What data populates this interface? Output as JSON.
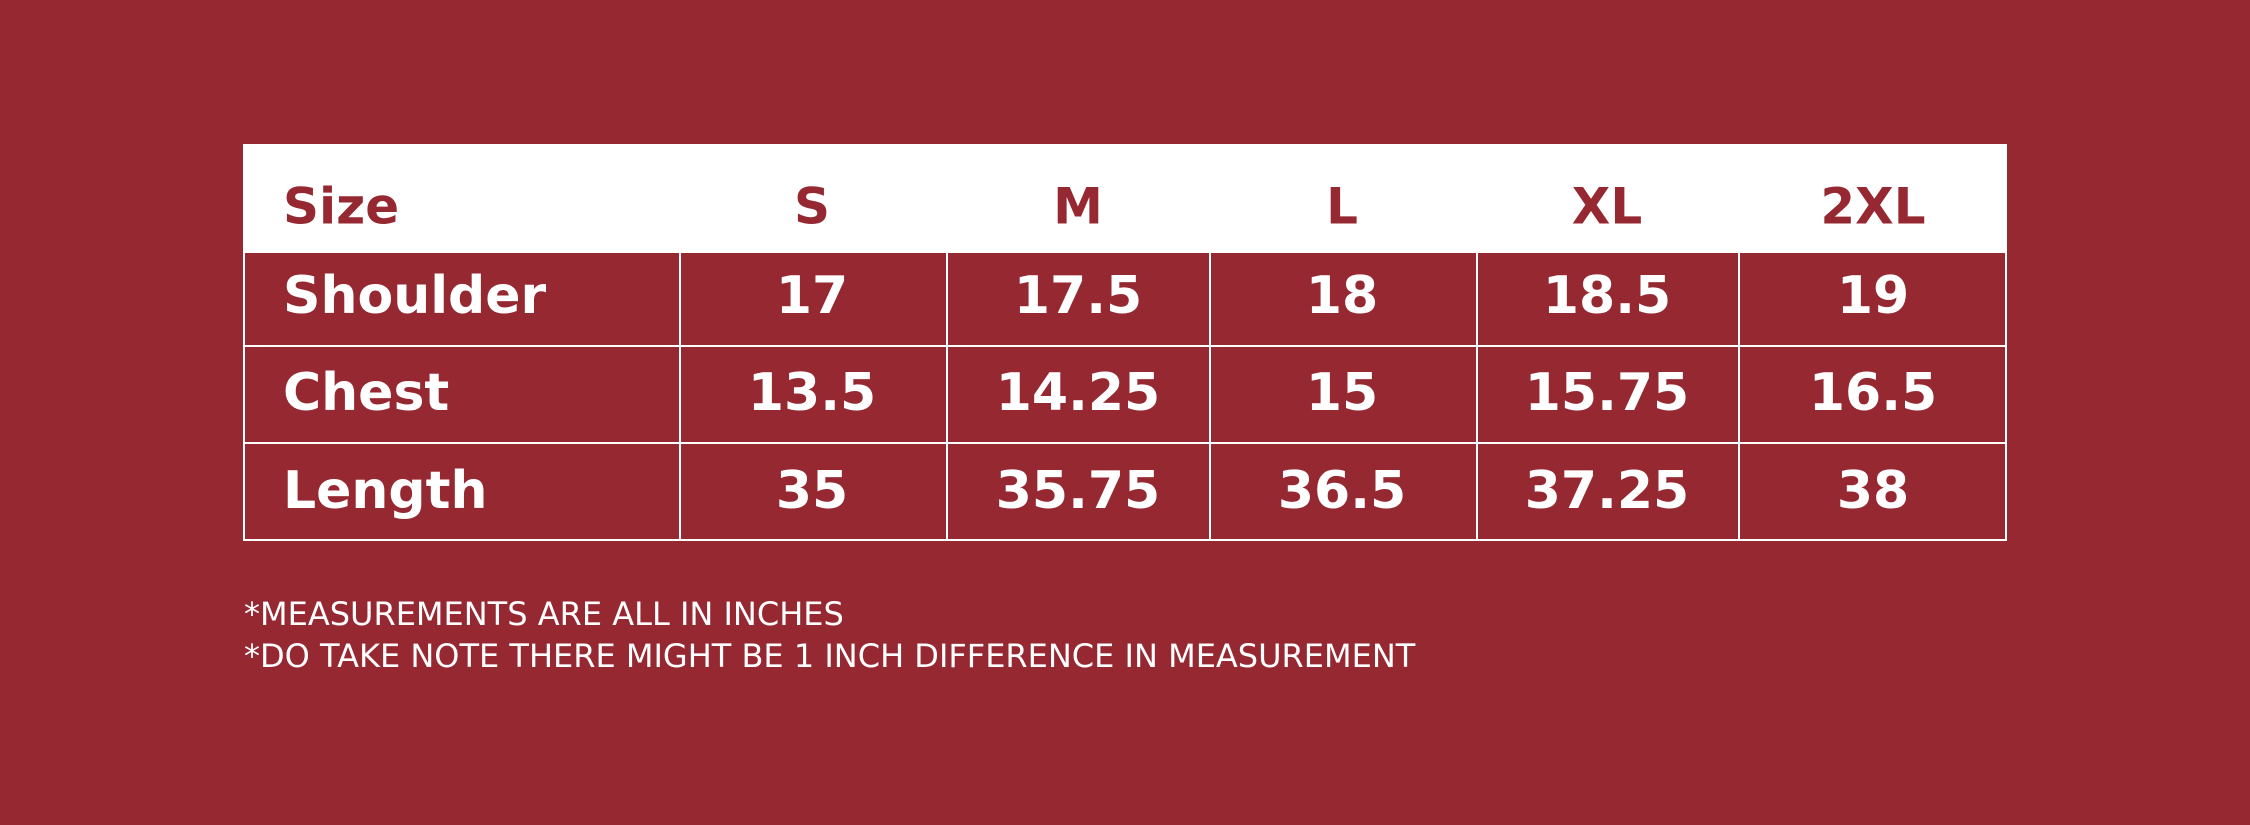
{
  "table": {
    "header": [
      "Size",
      "S",
      "M",
      "L",
      "XL",
      "2XL"
    ],
    "rows": [
      [
        "Shoulder",
        17,
        17.5,
        18,
        18.5,
        19
      ],
      [
        "Chest",
        13.5,
        14.25,
        15,
        15.75,
        16.5
      ],
      [
        "Length",
        35,
        35.75,
        36.5,
        37.25,
        38
      ]
    ]
  },
  "notes": [
    "*MEASUREMENTS ARE ALL IN INCHES",
    "*DO TAKE NOTE THERE MIGHT BE 1 INCH DIFFERENCE IN MEASUREMENT"
  ]
}
